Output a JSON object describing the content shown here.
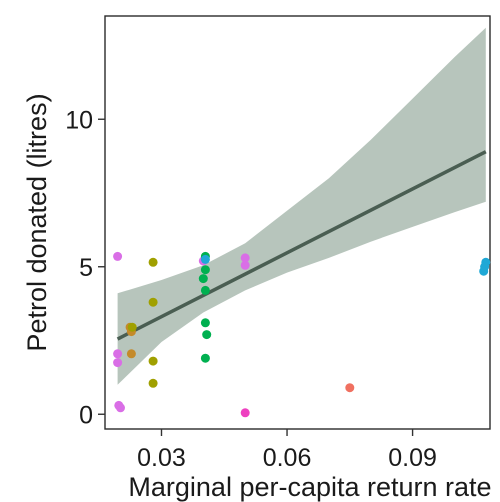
{
  "chart_data": {
    "type": "scatter",
    "xlabel": "Marginal per-capita return rate",
    "ylabel": "Petrol donated (litres)",
    "xlim": [
      0.0165,
      0.1085
    ],
    "ylim": [
      -0.5,
      13.5
    ],
    "x_ticks": [
      {
        "value": 0.03,
        "label": "0.03"
      },
      {
        "value": 0.06,
        "label": "0.06"
      },
      {
        "value": 0.09,
        "label": "0.09"
      }
    ],
    "y_ticks": [
      {
        "value": 0,
        "label": "0"
      },
      {
        "value": 5,
        "label": "5"
      },
      {
        "value": 10,
        "label": "10"
      }
    ],
    "grid": false,
    "legend": "none",
    "points": [
      {
        "x": 0.0195,
        "y": 5.35,
        "color": "#d96ee6"
      },
      {
        "x": 0.0195,
        "y": 2.05,
        "color": "#d96ee6"
      },
      {
        "x": 0.0195,
        "y": 1.75,
        "color": "#d96ee6"
      },
      {
        "x": 0.0198,
        "y": 0.3,
        "color": "#d96ee6"
      },
      {
        "x": 0.0202,
        "y": 0.22,
        "color": "#d96ee6"
      },
      {
        "x": 0.0225,
        "y": 2.95,
        "color": "#c48a2a"
      },
      {
        "x": 0.0228,
        "y": 2.8,
        "color": "#c48a2a"
      },
      {
        "x": 0.023,
        "y": 2.95,
        "color": "#a0a000"
      },
      {
        "x": 0.0228,
        "y": 2.05,
        "color": "#c48a2a"
      },
      {
        "x": 0.028,
        "y": 5.15,
        "color": "#a0a000"
      },
      {
        "x": 0.028,
        "y": 3.8,
        "color": "#a0a000"
      },
      {
        "x": 0.028,
        "y": 1.8,
        "color": "#a0a000"
      },
      {
        "x": 0.028,
        "y": 1.05,
        "color": "#a0a000"
      },
      {
        "x": 0.04,
        "y": 5.2,
        "color": "#d96ee6"
      },
      {
        "x": 0.0405,
        "y": 5.35,
        "color": "#00b050"
      },
      {
        "x": 0.0405,
        "y": 5.25,
        "color": "#1fa8d6"
      },
      {
        "x": 0.0405,
        "y": 4.9,
        "color": "#00b050"
      },
      {
        "x": 0.04,
        "y": 4.6,
        "color": "#00b050"
      },
      {
        "x": 0.0405,
        "y": 4.2,
        "color": "#00b050"
      },
      {
        "x": 0.0405,
        "y": 3.1,
        "color": "#00b050"
      },
      {
        "x": 0.0408,
        "y": 2.7,
        "color": "#00b050"
      },
      {
        "x": 0.0405,
        "y": 1.9,
        "color": "#00b050"
      },
      {
        "x": 0.05,
        "y": 5.3,
        "color": "#d96ee6"
      },
      {
        "x": 0.05,
        "y": 5.05,
        "color": "#d96ee6"
      },
      {
        "x": 0.05,
        "y": 0.05,
        "color": "#ee40c0"
      },
      {
        "x": 0.075,
        "y": 0.9,
        "color": "#f07060"
      },
      {
        "x": 0.1075,
        "y": 5.15,
        "color": "#1fa8d6"
      },
      {
        "x": 0.1072,
        "y": 5.0,
        "color": "#1fa8d6"
      },
      {
        "x": 0.107,
        "y": 4.85,
        "color": "#1fa8d6"
      }
    ],
    "trend_line": {
      "color": "#4a5e52",
      "band_color": "#9fb2a6",
      "x": [
        0.0195,
        0.1075
      ],
      "y": [
        2.55,
        8.9
      ],
      "band": [
        {
          "x": 0.0195,
          "lower": 1.0,
          "upper": 4.1
        },
        {
          "x": 0.03,
          "lower": 2.45,
          "upper": 4.55
        },
        {
          "x": 0.04,
          "lower": 3.45,
          "upper": 5.05
        },
        {
          "x": 0.05,
          "lower": 4.2,
          "upper": 5.8
        },
        {
          "x": 0.06,
          "lower": 4.8,
          "upper": 6.9
        },
        {
          "x": 0.07,
          "lower": 5.3,
          "upper": 8.0
        },
        {
          "x": 0.08,
          "lower": 5.85,
          "upper": 9.3
        },
        {
          "x": 0.09,
          "lower": 6.35,
          "upper": 10.7
        },
        {
          "x": 0.1,
          "lower": 6.85,
          "upper": 12.1
        },
        {
          "x": 0.1075,
          "lower": 7.2,
          "upper": 13.1
        }
      ]
    }
  }
}
